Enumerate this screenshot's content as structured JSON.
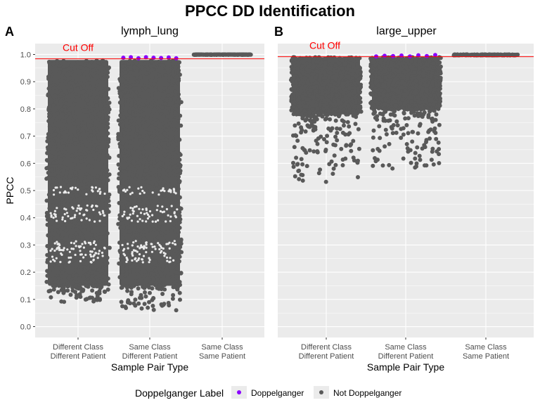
{
  "title": "PPCC DD Identification",
  "ylabel": "PPCC",
  "xlabel": "Sample Pair Type",
  "legend": {
    "title": "Doppelganger Label",
    "entries": [
      {
        "label": "Doppelganger",
        "color": "#8b00ff"
      },
      {
        "label": "Not Doppelganger",
        "color": "#595959"
      }
    ]
  },
  "colors": {
    "panel_bg": "#ebebeb",
    "grid": "#ffffff",
    "points": "#595959",
    "doppelganger": "#8b00ff",
    "cutoff": "#ff0000"
  },
  "chart_data": [
    {
      "type": "scatter",
      "panel": "A",
      "title": "lymph_lung",
      "categories": [
        {
          "line1": "Different Class",
          "line2": "Different Patient"
        },
        {
          "line1": "Same Class",
          "line2": "Different Patient"
        },
        {
          "line1": "Same Class",
          "line2": "Same Patient"
        }
      ],
      "yticks": [
        "0.0",
        "0.1",
        "0.2",
        "0.3",
        "0.4",
        "0.5",
        "0.6",
        "0.7",
        "0.8",
        "0.9",
        "1.0"
      ],
      "ylim": [
        -0.04,
        1.04
      ],
      "cutoff": {
        "value": 0.984,
        "label": "Cut Off"
      },
      "series": [
        {
          "category": 0,
          "min": 0.09,
          "dense_min": 0.15,
          "max": 0.98,
          "doppelganger": []
        },
        {
          "category": 1,
          "min": 0.06,
          "dense_min": 0.15,
          "max": 0.98,
          "doppelganger": [
            0.988,
            0.99,
            0.986,
            0.99,
            0.988,
            0.987,
            0.989,
            0.986
          ]
        },
        {
          "category": 2,
          "min": 0.999,
          "dense_min": 0.999,
          "max": 1.0,
          "doppelganger": []
        }
      ]
    },
    {
      "type": "scatter",
      "panel": "B",
      "title": "large_upper",
      "categories": [
        {
          "line1": "Different Class",
          "line2": "Different Patient"
        },
        {
          "line1": "Same Class",
          "line2": "Different Patient"
        },
        {
          "line1": "Same Class",
          "line2": "Same Patient"
        }
      ],
      "yticks": [
        "0.0",
        "0.1",
        "0.2",
        "0.3",
        "0.4",
        "0.5",
        "0.6",
        "0.7",
        "0.8",
        "0.9",
        "1.0"
      ],
      "ylim": [
        -0.04,
        1.04
      ],
      "cutoff": {
        "value": 0.992,
        "label": "Cut Off"
      },
      "series": [
        {
          "category": 0,
          "min": 0.53,
          "dense_min": 0.78,
          "max": 0.99,
          "doppelganger": []
        },
        {
          "category": 1,
          "min": 0.58,
          "dense_min": 0.8,
          "max": 0.99,
          "doppelganger": [
            0.993,
            0.995,
            0.994,
            0.996,
            0.993,
            0.997,
            0.994,
            0.998
          ]
        },
        {
          "category": 2,
          "min": 0.997,
          "dense_min": 0.997,
          "max": 1.0,
          "doppelganger": []
        }
      ]
    }
  ]
}
